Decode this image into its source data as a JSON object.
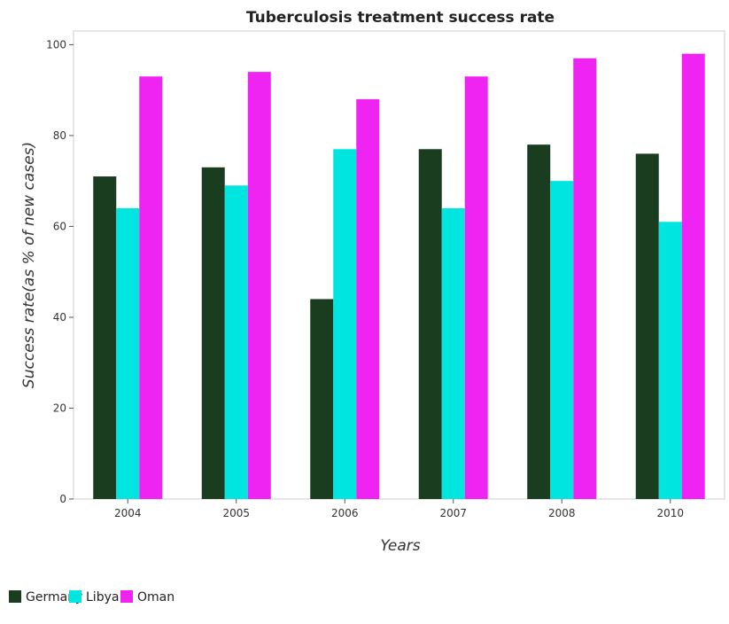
{
  "chart_data": {
    "type": "bar",
    "title": "Tuberculosis treatment success rate",
    "xlabel": "Years",
    "ylabel": "Success rate(as % of new cases)",
    "categories": [
      "2004",
      "2005",
      "2006",
      "2007",
      "2008",
      "2010"
    ],
    "ylim": [
      0,
      103
    ],
    "yticks": [
      0,
      20,
      40,
      60,
      80,
      100
    ],
    "series": [
      {
        "name": "Germany",
        "color": "#1a3d20",
        "values": [
          71,
          73,
          44,
          77,
          78,
          76
        ]
      },
      {
        "name": "Libya",
        "color": "#00e5e0",
        "values": [
          64,
          69,
          77,
          64,
          70,
          61
        ]
      },
      {
        "name": "Oman",
        "color": "#ef23f2",
        "values": [
          93,
          94,
          88,
          93,
          97,
          98
        ]
      }
    ],
    "legend_position": "bottom-left",
    "grid": false
  }
}
